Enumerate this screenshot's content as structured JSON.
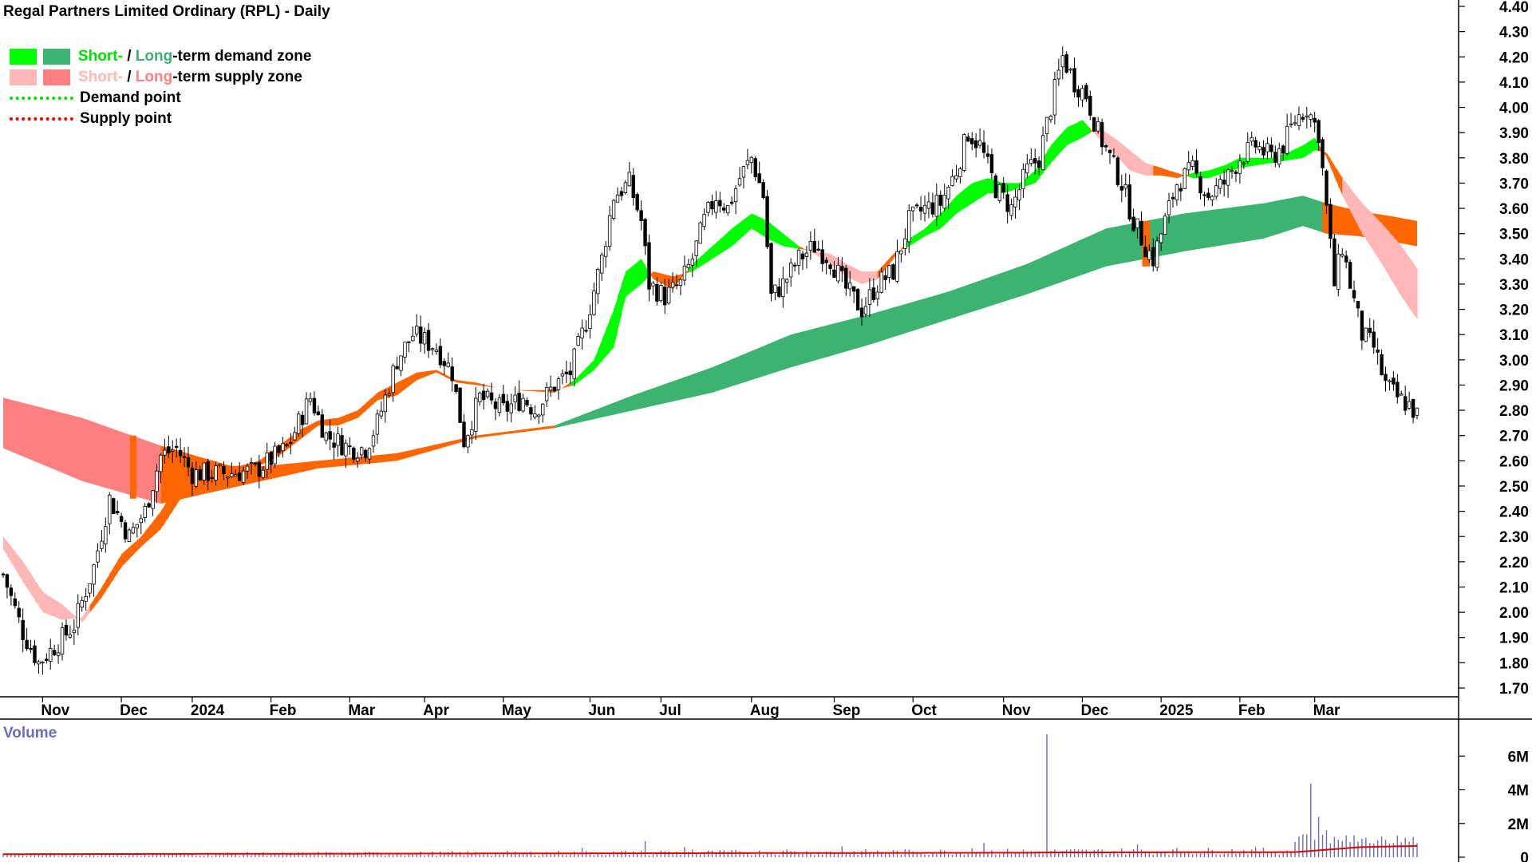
{
  "title": "Regal Partners Limited Ordinary (RPL) - Daily",
  "legend": {
    "demand_zone": {
      "short_text": "Short-",
      "sep": " / ",
      "long_text": "Long",
      "suffix": "-term demand zone",
      "short_color": "#00ff00",
      "long_color": "#3cb371"
    },
    "supply_zone": {
      "short_text": "Short-",
      "sep": " / ",
      "long_text": "Long",
      "suffix": "-term supply zone",
      "short_color": "#ffb6b6",
      "long_color": "#ff8080"
    },
    "demand_point": {
      "label": "Demand point",
      "color": "#00ff00"
    },
    "supply_point": {
      "label": "Supply point",
      "color": "#ff0000"
    }
  },
  "volume_label": "Volume",
  "chart_data": {
    "type": "candlestick",
    "title": "Regal Partners Limited Ordinary (RPL) - Daily",
    "price_axis": {
      "min": 1.7,
      "max": 4.4,
      "ticks": [
        "1.70",
        "1.80",
        "1.90",
        "2.00",
        "2.10",
        "2.20",
        "2.30",
        "2.40",
        "2.50",
        "2.60",
        "2.70",
        "2.80",
        "2.90",
        "3.00",
        "3.10",
        "3.20",
        "3.30",
        "3.40",
        "3.50",
        "3.60",
        "3.70",
        "3.80",
        "3.90",
        "4.00",
        "4.10",
        "4.20",
        "4.30",
        "4.40"
      ]
    },
    "x_axis": {
      "labels": [
        {
          "label": "Nov",
          "index": 10
        },
        {
          "label": "Dec",
          "index": 30
        },
        {
          "label": "2024",
          "index": 48
        },
        {
          "label": "Feb",
          "index": 68
        },
        {
          "label": "Mar",
          "index": 88
        },
        {
          "label": "Apr",
          "index": 107
        },
        {
          "label": "May",
          "index": 127
        },
        {
          "label": "Jun",
          "index": 149
        },
        {
          "label": "Jul",
          "index": 167
        },
        {
          "label": "Aug",
          "index": 190
        },
        {
          "label": "Sep",
          "index": 211
        },
        {
          "label": "Oct",
          "index": 231
        },
        {
          "label": "Nov",
          "index": 254
        },
        {
          "label": "Dec",
          "index": 274
        },
        {
          "label": "2025",
          "index": 294
        },
        {
          "label": "Feb",
          "index": 314
        },
        {
          "label": "Mar",
          "index": 333
        }
      ]
    },
    "close_anchors": [
      [
        0,
        2.15
      ],
      [
        5,
        1.92
      ],
      [
        9,
        1.8
      ],
      [
        14,
        1.88
      ],
      [
        18,
        1.95
      ],
      [
        23,
        2.18
      ],
      [
        27,
        2.45
      ],
      [
        32,
        2.3
      ],
      [
        36,
        2.4
      ],
      [
        40,
        2.62
      ],
      [
        44,
        2.65
      ],
      [
        48,
        2.55
      ],
      [
        56,
        2.55
      ],
      [
        64,
        2.56
      ],
      [
        72,
        2.65
      ],
      [
        78,
        2.85
      ],
      [
        82,
        2.7
      ],
      [
        88,
        2.65
      ],
      [
        92,
        2.65
      ],
      [
        95,
        2.75
      ],
      [
        100,
        3.0
      ],
      [
        104,
        3.1
      ],
      [
        110,
        3.05
      ],
      [
        114,
        2.95
      ],
      [
        117,
        2.68
      ],
      [
        121,
        2.85
      ],
      [
        127,
        2.8
      ],
      [
        132,
        2.85
      ],
      [
        135,
        2.8
      ],
      [
        140,
        2.9
      ],
      [
        144,
        2.95
      ],
      [
        148,
        3.15
      ],
      [
        152,
        3.4
      ],
      [
        155,
        3.65
      ],
      [
        159,
        3.7
      ],
      [
        162,
        3.55
      ],
      [
        164,
        3.3
      ],
      [
        168,
        3.25
      ],
      [
        172,
        3.3
      ],
      [
        175,
        3.4
      ],
      [
        178,
        3.55
      ],
      [
        181,
        3.65
      ],
      [
        184,
        3.6
      ],
      [
        187,
        3.72
      ],
      [
        190,
        3.8
      ],
      [
        193,
        3.65
      ],
      [
        195,
        3.25
      ],
      [
        198,
        3.3
      ],
      [
        202,
        3.4
      ],
      [
        206,
        3.45
      ],
      [
        210,
        3.4
      ],
      [
        214,
        3.28
      ],
      [
        218,
        3.2
      ],
      [
        222,
        3.3
      ],
      [
        226,
        3.35
      ],
      [
        230,
        3.55
      ],
      [
        234,
        3.6
      ],
      [
        238,
        3.62
      ],
      [
        242,
        3.75
      ],
      [
        245,
        3.9
      ],
      [
        248,
        3.85
      ],
      [
        252,
        3.68
      ],
      [
        256,
        3.6
      ],
      [
        260,
        3.75
      ],
      [
        263,
        3.8
      ],
      [
        266,
        4.0
      ],
      [
        269,
        4.2
      ],
      [
        272,
        4.1
      ],
      [
        275,
        4.05
      ],
      [
        278,
        3.9
      ],
      [
        281,
        3.8
      ],
      [
        284,
        3.7
      ],
      [
        287,
        3.55
      ],
      [
        290,
        3.45
      ],
      [
        292,
        3.4
      ],
      [
        295,
        3.55
      ],
      [
        298,
        3.7
      ],
      [
        302,
        3.75
      ],
      [
        306,
        3.65
      ],
      [
        310,
        3.7
      ],
      [
        314,
        3.8
      ],
      [
        318,
        3.85
      ],
      [
        322,
        3.8
      ],
      [
        325,
        3.85
      ],
      [
        328,
        3.95
      ],
      [
        331,
        4.0
      ],
      [
        334,
        3.9
      ],
      [
        336,
        3.6
      ],
      [
        338,
        3.3
      ],
      [
        340,
        3.45
      ],
      [
        342,
        3.3
      ],
      [
        345,
        3.1
      ],
      [
        348,
        3.05
      ],
      [
        351,
        2.9
      ],
      [
        354,
        2.85
      ],
      [
        357,
        2.82
      ],
      [
        359,
        2.78
      ]
    ],
    "n_bars": 360,
    "long_term_zone": [
      [
        0,
        2.85,
        2.65
      ],
      [
        20,
        2.77,
        2.52
      ],
      [
        40,
        2.66,
        2.43
      ],
      [
        60,
        2.57,
        2.5
      ],
      [
        80,
        2.6,
        2.57
      ],
      [
        100,
        2.63,
        2.6
      ],
      [
        120,
        2.7,
        2.69
      ],
      [
        140,
        2.74,
        2.73
      ],
      [
        160,
        2.86,
        2.8
      ],
      [
        180,
        2.97,
        2.87
      ],
      [
        200,
        3.1,
        2.97
      ],
      [
        220,
        3.18,
        3.06
      ],
      [
        240,
        3.27,
        3.16
      ],
      [
        260,
        3.38,
        3.26
      ],
      [
        280,
        3.52,
        3.37
      ],
      [
        300,
        3.58,
        3.43
      ],
      [
        320,
        3.62,
        3.48
      ],
      [
        330,
        3.65,
        3.53
      ],
      [
        336,
        3.62,
        3.5
      ],
      [
        344,
        3.59,
        3.49
      ],
      [
        352,
        3.57,
        3.47
      ],
      [
        359,
        3.55,
        3.45
      ]
    ],
    "long_term_supply_until": 125,
    "long_term_demand_from": 140,
    "long_term_supply_from": 335,
    "short_term_zone": [
      [
        0,
        2.3,
        2.25
      ],
      [
        5,
        2.2,
        2.12
      ],
      [
        10,
        2.08,
        2.0
      ],
      [
        15,
        2.03,
        1.97
      ],
      [
        20,
        1.96,
        1.98
      ],
      [
        25,
        2.06,
        2.1
      ],
      [
        30,
        2.18,
        2.23
      ],
      [
        35,
        2.26,
        2.3
      ],
      [
        40,
        2.33,
        2.4
      ],
      [
        45,
        2.45,
        2.53
      ],
      [
        50,
        2.52,
        2.58
      ],
      [
        55,
        2.55,
        2.58
      ],
      [
        60,
        2.55,
        2.58
      ],
      [
        65,
        2.58,
        2.6
      ],
      [
        70,
        2.62,
        2.66
      ],
      [
        75,
        2.68,
        2.72
      ],
      [
        80,
        2.74,
        2.76
      ],
      [
        85,
        2.74,
        2.77
      ],
      [
        90,
        2.77,
        2.8
      ],
      [
        95,
        2.84,
        2.87
      ],
      [
        100,
        2.86,
        2.91
      ],
      [
        105,
        2.92,
        2.95
      ],
      [
        110,
        2.95,
        2.96
      ],
      [
        115,
        2.91,
        2.92
      ],
      [
        120,
        2.9,
        2.91
      ],
      [
        125,
        2.89,
        2.89
      ],
      [
        130,
        2.88,
        2.88
      ],
      [
        140,
        2.87,
        2.88
      ],
      [
        145,
        2.92,
        2.9
      ],
      [
        150,
        3.0,
        2.96
      ],
      [
        155,
        3.2,
        3.05
      ],
      [
        158,
        3.35,
        3.25
      ],
      [
        162,
        3.4,
        3.3
      ],
      [
        165,
        3.32,
        3.35
      ],
      [
        170,
        3.28,
        3.33
      ],
      [
        175,
        3.38,
        3.35
      ],
      [
        180,
        3.45,
        3.4
      ],
      [
        185,
        3.52,
        3.45
      ],
      [
        190,
        3.58,
        3.52
      ],
      [
        194,
        3.55,
        3.48
      ],
      [
        198,
        3.5,
        3.45
      ],
      [
        202,
        3.45,
        3.44
      ],
      [
        206,
        3.42,
        3.43
      ],
      [
        210,
        3.38,
        3.42
      ],
      [
        214,
        3.33,
        3.38
      ],
      [
        218,
        3.3,
        3.35
      ],
      [
        222,
        3.32,
        3.35
      ],
      [
        226,
        3.4,
        3.42
      ],
      [
        230,
        3.48,
        3.45
      ],
      [
        234,
        3.52,
        3.49
      ],
      [
        238,
        3.58,
        3.52
      ],
      [
        242,
        3.65,
        3.58
      ],
      [
        246,
        3.7,
        3.62
      ],
      [
        250,
        3.72,
        3.66
      ],
      [
        254,
        3.7,
        3.66
      ],
      [
        258,
        3.7,
        3.68
      ],
      [
        262,
        3.75,
        3.7
      ],
      [
        266,
        3.85,
        3.78
      ],
      [
        270,
        3.92,
        3.85
      ],
      [
        274,
        3.95,
        3.88
      ],
      [
        278,
        3.88,
        3.92
      ],
      [
        282,
        3.82,
        3.88
      ],
      [
        286,
        3.75,
        3.83
      ],
      [
        290,
        3.73,
        3.78
      ],
      [
        294,
        3.73,
        3.76
      ],
      [
        298,
        3.72,
        3.74
      ],
      [
        302,
        3.74,
        3.72
      ],
      [
        306,
        3.75,
        3.72
      ],
      [
        310,
        3.77,
        3.74
      ],
      [
        314,
        3.8,
        3.76
      ],
      [
        318,
        3.8,
        3.77
      ],
      [
        322,
        3.8,
        3.78
      ],
      [
        326,
        3.82,
        3.79
      ],
      [
        330,
        3.85,
        3.8
      ],
      [
        333,
        3.88,
        3.83
      ],
      [
        336,
        3.8,
        3.82
      ],
      [
        340,
        3.65,
        3.72
      ],
      [
        345,
        3.5,
        3.62
      ],
      [
        350,
        3.38,
        3.54
      ],
      [
        355,
        3.25,
        3.45
      ],
      [
        359,
        3.16,
        3.36
      ]
    ],
    "volume_axis": {
      "max_millions": 8,
      "ticks": [
        "0",
        "2M",
        "4M",
        "6M"
      ]
    },
    "volume_spikes": [
      [
        8,
        0.22
      ],
      [
        26,
        0.16
      ],
      [
        74,
        0.15
      ],
      [
        129,
        0.18
      ],
      [
        147,
        0.55
      ],
      [
        160,
        0.35
      ],
      [
        163,
        0.95
      ],
      [
        167,
        0.4
      ],
      [
        173,
        0.6
      ],
      [
        175,
        0.45
      ],
      [
        199,
        0.45
      ],
      [
        213,
        0.65
      ],
      [
        246,
        0.52
      ],
      [
        249,
        0.85
      ],
      [
        265,
        7.3
      ],
      [
        288,
        0.75
      ],
      [
        328,
        0.9
      ],
      [
        330,
        1.35
      ],
      [
        332,
        4.35
      ],
      [
        334,
        2.4
      ],
      [
        336,
        1.6
      ],
      [
        338,
        1.2
      ],
      [
        341,
        1.3
      ],
      [
        345,
        1.1
      ],
      [
        349,
        1.0
      ],
      [
        353,
        0.85
      ]
    ],
    "volume_ma_start": 0.3,
    "volume_ma_end": 0.8,
    "colors": {
      "short_demand": "#00ff00",
      "long_demand": "#3cb371",
      "short_supply": "#ffb6b6",
      "long_supply": "#ff8080",
      "crossover": "#ff6600",
      "volume_bar": "#6b6bc0",
      "volume_ma": "#e00000"
    }
  }
}
